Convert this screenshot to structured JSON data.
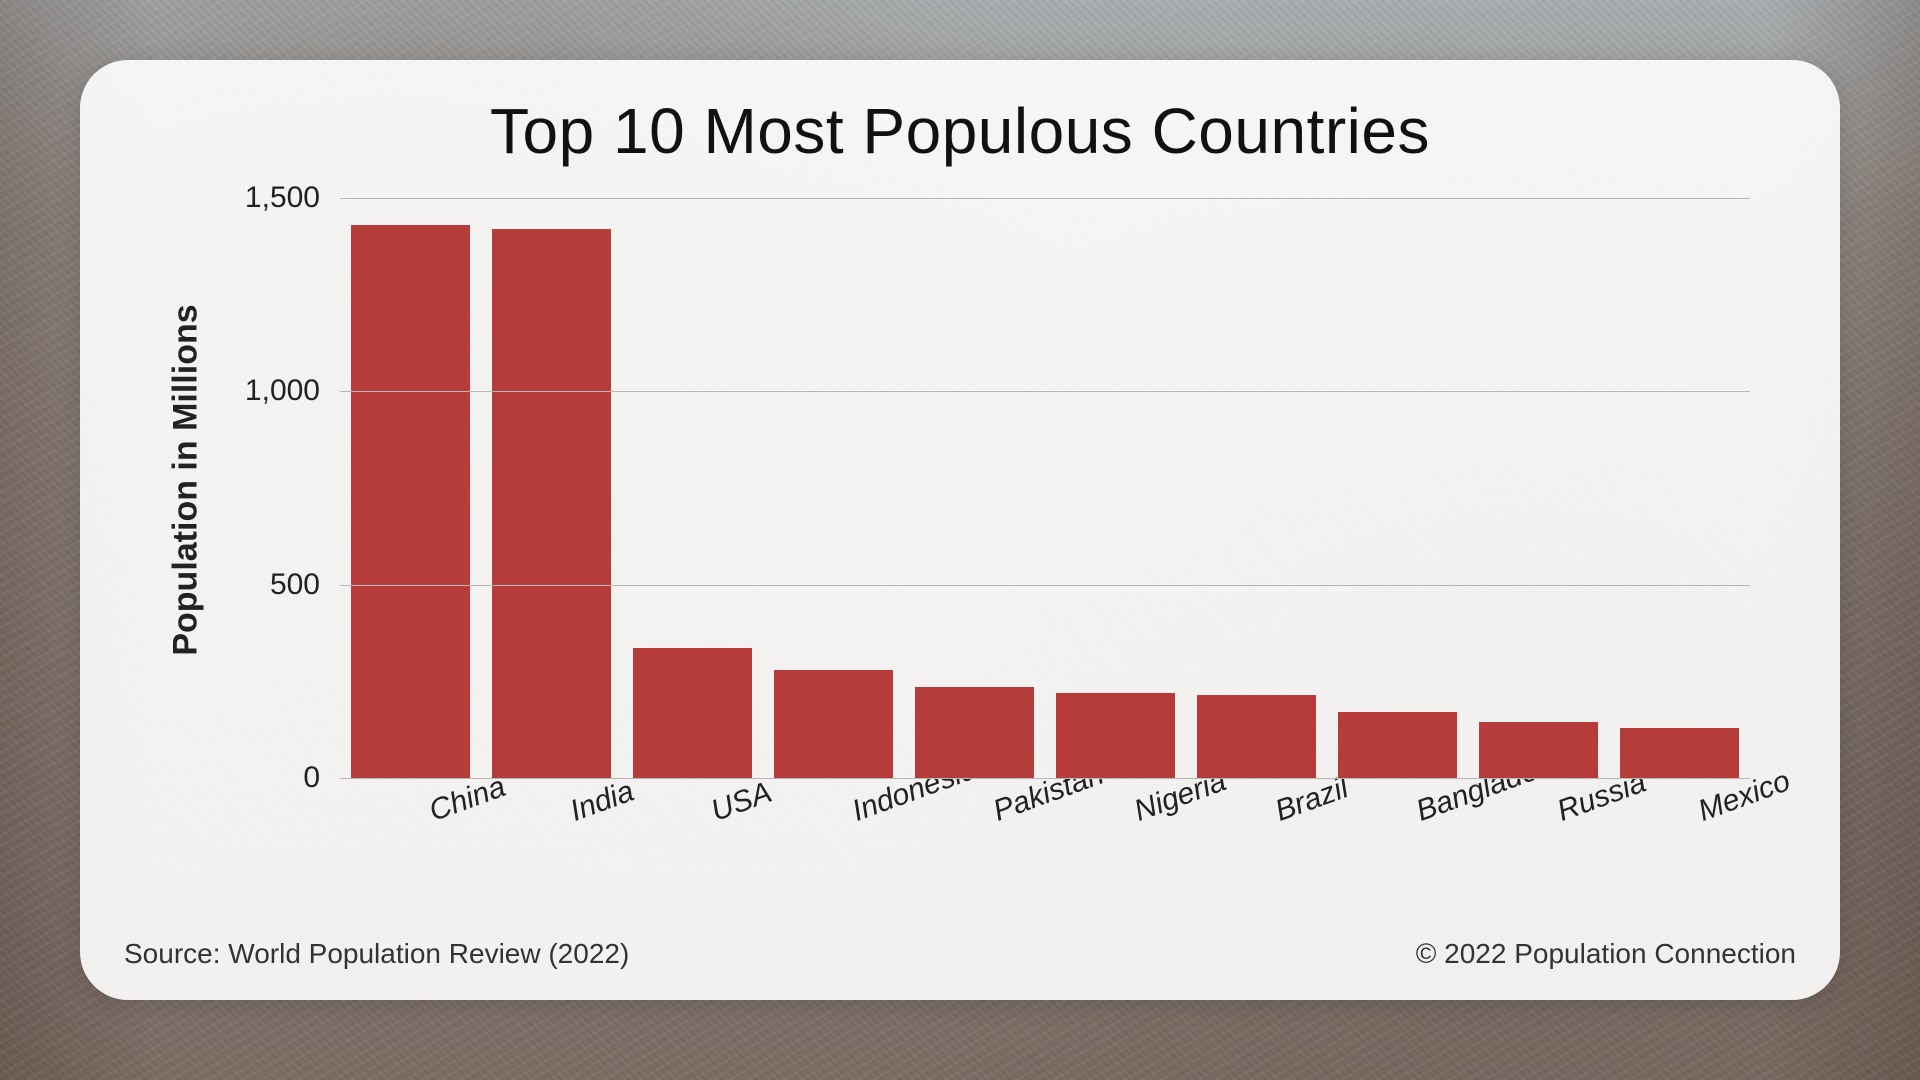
{
  "chart": {
    "type": "bar",
    "title": "Top 10 Most Populous Countries",
    "ylabel": "Population in Millions",
    "ylim": [
      0,
      1500
    ],
    "yticks": [
      0,
      500,
      1000,
      1500
    ],
    "ytick_labels": [
      "0",
      "500",
      "1,000",
      "1,500"
    ],
    "categories": [
      "China",
      "India",
      "USA",
      "Indonesia",
      "Pakistan",
      "Nigeria",
      "Brazil",
      "Bangladesh",
      "Russia",
      "Mexico"
    ],
    "values": [
      1430,
      1420,
      335,
      280,
      235,
      220,
      215,
      170,
      145,
      130
    ],
    "bar_color": "#b63c39",
    "grid_color": "#b7b7b7",
    "card_bg": "rgba(255,255,255,0.90)",
    "title_fontsize": 64,
    "ylabel_fontsize": 34,
    "tick_fontsize": 30,
    "xlabel_fontsize": 30,
    "xlabel_rotation_deg": -20,
    "bar_width_ratio": 0.84,
    "card_border_radius": 48
  },
  "footer": {
    "source": "Source: World Population Review (2022)",
    "copyright": "© 2022 Population Connection"
  }
}
